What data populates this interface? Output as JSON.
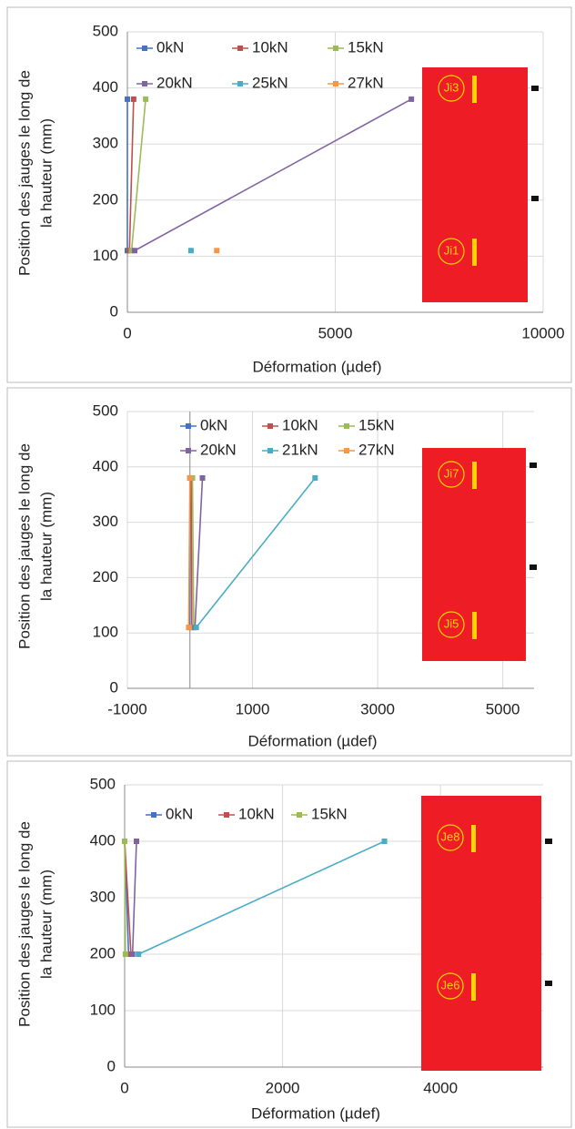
{
  "chart_data": [
    {
      "type": "line",
      "y_label": [
        "Position des jauges le long de",
        "la hauteur (mm)"
      ],
      "x_label": "Déformation (µdef)",
      "xlim": [
        0,
        10000
      ],
      "xticks": [
        0,
        5000,
        10000
      ],
      "ylim": [
        0,
        500
      ],
      "yticks": [
        0,
        100,
        200,
        300,
        400,
        500
      ],
      "grid": true,
      "inset_labels": [
        "Ji3",
        "Ji1"
      ],
      "series": [
        {
          "name": "0kN",
          "color": "#4472c4",
          "x": [
            0,
            0
          ],
          "values": [
            380,
            110
          ]
        },
        {
          "name": "10kN",
          "color": "#c0504d",
          "x": [
            150,
            50
          ],
          "values": [
            380,
            110
          ]
        },
        {
          "name": "15kN",
          "color": "#9bbb59",
          "x": [
            440,
            100
          ],
          "values": [
            380,
            110
          ]
        },
        {
          "name": "20kN",
          "color": "#8064a2",
          "x": [
            6830,
            175
          ],
          "values": [
            380,
            110
          ]
        },
        {
          "name": "25kN",
          "color": "#4bacc6",
          "x": [
            null,
            1530
          ],
          "values": [
            null,
            110
          ]
        },
        {
          "name": "27kN",
          "color": "#f79646",
          "x": [
            null,
            2150
          ],
          "values": [
            null,
            110
          ]
        }
      ]
    },
    {
      "type": "line",
      "y_label": [
        "Position des jauges le long de",
        "la hauteur (mm)"
      ],
      "x_label": "Déformation (µdef)",
      "xlim": [
        -1000,
        5500
      ],
      "xticks": [
        -1000,
        1000,
        3000,
        5000
      ],
      "ylim": [
        0,
        500
      ],
      "yticks": [
        0,
        100,
        200,
        300,
        400,
        500
      ],
      "grid": true,
      "inset_labels": [
        "Ji7",
        "Ji5"
      ],
      "series": [
        {
          "name": "0kN",
          "color": "#4472c4",
          "x": [
            0,
            0
          ],
          "values": [
            380,
            110
          ]
        },
        {
          "name": "10kN",
          "color": "#c0504d",
          "x": [
            20,
            30
          ],
          "values": [
            380,
            110
          ]
        },
        {
          "name": "15kN",
          "color": "#9bbb59",
          "x": [
            40,
            60
          ],
          "values": [
            380,
            110
          ]
        },
        {
          "name": "20kN",
          "color": "#8064a2",
          "x": [
            200,
            80
          ],
          "values": [
            380,
            110
          ]
        },
        {
          "name": "21kN",
          "color": "#4bacc6",
          "x": [
            2000,
            100
          ],
          "values": [
            380,
            110
          ]
        },
        {
          "name": "27kN",
          "color": "#f79646",
          "x": [
            0,
            -20
          ],
          "values": [
            380,
            110
          ]
        }
      ]
    },
    {
      "type": "line",
      "y_label": [
        "Position des jauges le long de",
        "la hauteur (mm)"
      ],
      "x_label": "Déformation (µdef)",
      "xlim": [
        0,
        5300
      ],
      "xticks": [
        0,
        2000,
        4000
      ],
      "ylim": [
        0,
        500
      ],
      "yticks": [
        0,
        100,
        200,
        300,
        400,
        500
      ],
      "grid": true,
      "inset_labels": [
        "Je8",
        "Je6"
      ],
      "series": [
        {
          "name": "0kN",
          "color": "#4472c4",
          "x": [
            0,
            50
          ],
          "values": [
            400,
            200
          ]
        },
        {
          "name": "10kN",
          "color": "#c0504d",
          "x": [
            0,
            80
          ],
          "values": [
            400,
            200
          ]
        },
        {
          "name": "15kN",
          "color": "#9bbb59",
          "x": [
            0,
            10
          ],
          "values": [
            400,
            200
          ]
        },
        {
          "color": "#8064a2",
          "x": [
            150,
            100
          ],
          "values": [
            400,
            200
          ]
        },
        {
          "color": "#4bacc6",
          "x": [
            3290,
            175
          ],
          "values": [
            400,
            200
          ]
        }
      ]
    }
  ]
}
